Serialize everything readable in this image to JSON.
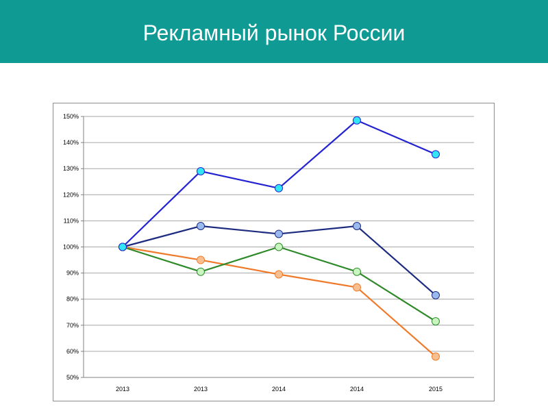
{
  "header": {
    "title": "Рекламный рынок России"
  },
  "colors": {
    "header_bg": "#0f9a94"
  },
  "chart_data": {
    "type": "line",
    "title": "",
    "xlabel": "",
    "ylabel": "",
    "categories": [
      "2013",
      "2013",
      "2014",
      "2014",
      "2015"
    ],
    "ylim": [
      50,
      150
    ],
    "yticks": [
      50,
      60,
      70,
      80,
      90,
      100,
      110,
      120,
      130,
      140,
      150
    ],
    "ytick_labels": [
      "50%",
      "60%",
      "70%",
      "80%",
      "90%",
      "100%",
      "110%",
      "120%",
      "130%",
      "140%",
      "150%"
    ],
    "grid": true,
    "legend": "none",
    "series": [
      {
        "values": [
          100,
          129,
          122.5,
          148.5,
          135.5
        ],
        "line_color": "#2323d2",
        "marker_color": "#33e6f5"
      },
      {
        "values": [
          100,
          108,
          105,
          108,
          81.5
        ],
        "line_color": "#1c2a80",
        "marker_color": "#9ab9ee"
      },
      {
        "values": [
          100,
          90.5,
          100,
          90.5,
          71.5
        ],
        "line_color": "#2e8a28",
        "marker_color": "#c9f5c0"
      },
      {
        "values": [
          100,
          95,
          89.5,
          84.5,
          58
        ],
        "line_color": "#f07a2a",
        "marker_color": "#f8c090"
      }
    ]
  }
}
